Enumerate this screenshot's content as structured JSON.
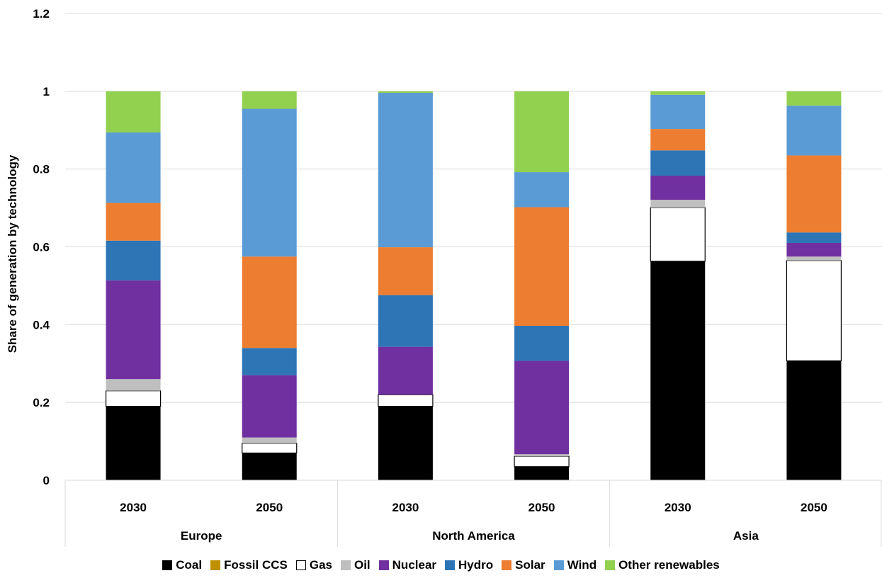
{
  "chart_data": {
    "type": "bar",
    "stacked": true,
    "ylabel": "Share of generation by technology",
    "ylim": [
      0,
      1.2
    ],
    "yticks": [
      "0",
      "0.2",
      "0.4",
      "0.6",
      "0.8",
      "1",
      "1.2"
    ],
    "grid": true,
    "legend_position": "bottom",
    "groups": [
      {
        "name": "Europe",
        "categories": [
          "2030",
          "2050"
        ]
      },
      {
        "name": "North America",
        "categories": [
          "2030",
          "2050"
        ]
      },
      {
        "name": "Asia",
        "categories": [
          "2030",
          "2050"
        ]
      }
    ],
    "series": [
      {
        "name": "Coal",
        "color": "#000000",
        "values": [
          0.19,
          0.07,
          0.19,
          0.035,
          0.563,
          0.307
        ]
      },
      {
        "name": "Fossil CCS",
        "color": "#BF9000",
        "values": [
          0,
          0,
          0,
          0,
          0,
          0
        ]
      },
      {
        "name": "Gas",
        "color": "#FFFFFF",
        "values": [
          0.04,
          0.025,
          0.03,
          0.027,
          0.138,
          0.258
        ]
      },
      {
        "name": "Oil",
        "color": "#BFBFBF",
        "values": [
          0.03,
          0.015,
          0,
          0.005,
          0.02,
          0.01
        ]
      },
      {
        "name": "Nuclear",
        "color": "#7030A0",
        "values": [
          0.254,
          0.16,
          0.123,
          0.24,
          0.062,
          0.035
        ]
      },
      {
        "name": "Hydro",
        "color": "#2E75B6",
        "values": [
          0.102,
          0.07,
          0.133,
          0.09,
          0.065,
          0.027
        ]
      },
      {
        "name": "Solar",
        "color": "#ED7D31",
        "values": [
          0.097,
          0.235,
          0.123,
          0.305,
          0.055,
          0.198
        ]
      },
      {
        "name": "Wind",
        "color": "#5B9BD5",
        "values": [
          0.181,
          0.38,
          0.397,
          0.09,
          0.088,
          0.128
        ]
      },
      {
        "name": "Other renewables",
        "color": "#92D050",
        "values": [
          0.106,
          0.045,
          0.004,
          0.208,
          0.009,
          0.037
        ]
      }
    ]
  }
}
